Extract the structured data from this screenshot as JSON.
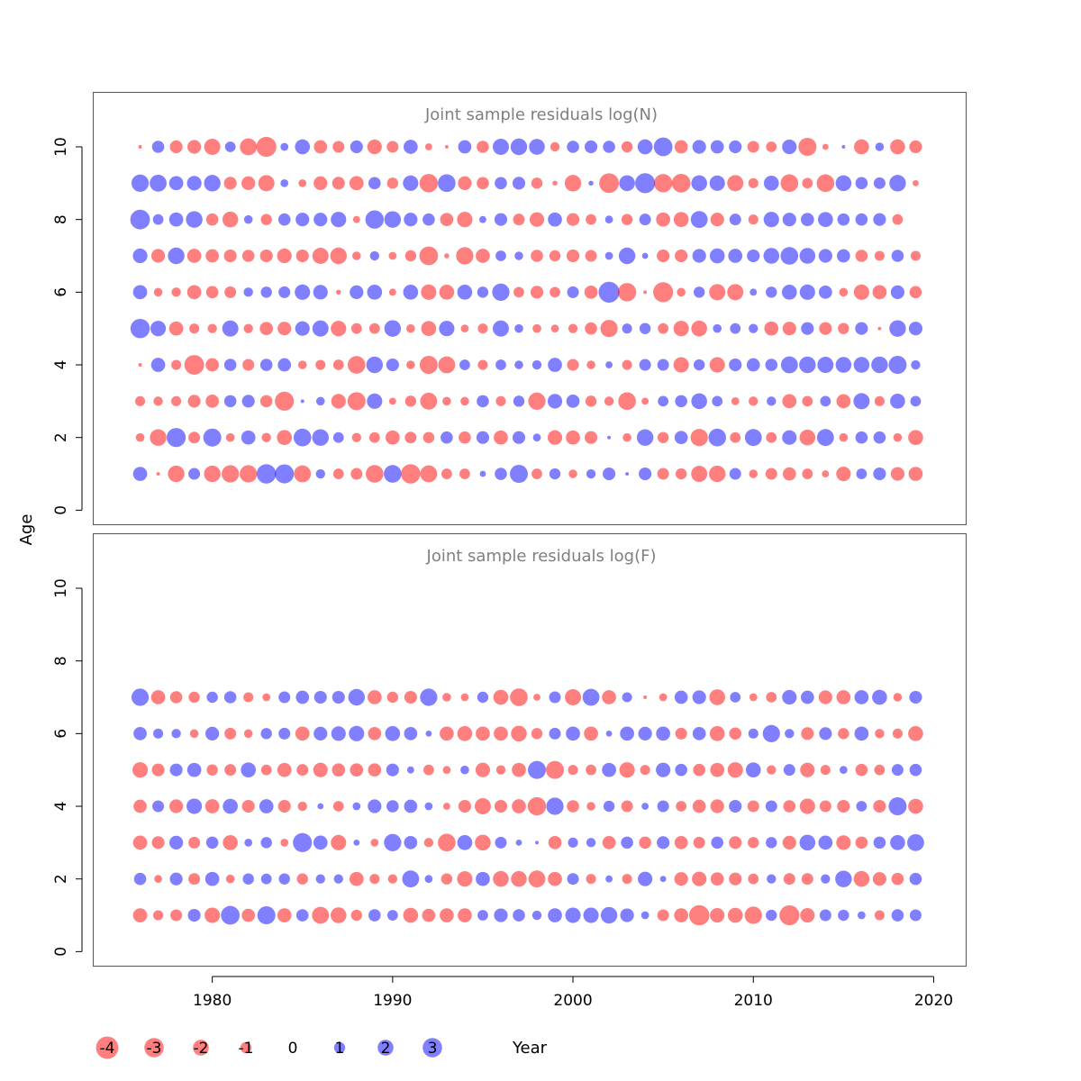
{
  "chart_data": {
    "type": "bubble",
    "x_label": "Year",
    "y_label": "Age",
    "x_ticks": [
      1980,
      1990,
      2000,
      2010,
      2020
    ],
    "x_range": [
      1973.4,
      2021.8
    ],
    "panels": [
      {
        "title": "Joint sample residuals log(N)",
        "y_ticks": [
          0,
          2,
          4,
          6,
          8,
          10
        ],
        "y_range": [
          -0.4,
          11.5
        ],
        "ages": [
          1,
          2,
          3,
          4,
          5,
          6,
          7,
          8,
          9,
          10
        ],
        "years": [
          1976,
          1977,
          1978,
          1979,
          1980,
          1981,
          1982,
          1983,
          1984,
          1985,
          1986,
          1987,
          1988,
          1989,
          1990,
          1991,
          1992,
          1993,
          1994,
          1995,
          1996,
          1997,
          1998,
          1999,
          2000,
          2001,
          2002,
          2003,
          2004,
          2005,
          2006,
          2007,
          2008,
          2009,
          2010,
          2011,
          2012,
          2013,
          2014,
          2015,
          2016,
          2017,
          2018,
          2019
        ],
        "residuals": [
          [
            1.6,
            -0.1,
            -2.2,
            1.1,
            -2.2,
            -2.4,
            -2.4,
            3.0,
            2.9,
            -2.3,
            0.7,
            -0.9,
            -1.1,
            -2.5,
            2.5,
            -3.0,
            -2.3,
            -0.9,
            -0.9,
            0.3,
            1.2,
            2.6,
            -0.9,
            1.0,
            -0.6,
            0.7,
            1.3,
            0.1,
            1.3,
            -1.1,
            -1.0,
            -2.1,
            -2.2,
            1.1,
            -0.6,
            -1.1,
            -1.4,
            -0.9,
            -0.4,
            -1.7,
            0.9,
            1.3,
            -1.5,
            -1.6
          ],
          [
            -0.6,
            -2.2,
            2.9,
            -1.1,
            2.6,
            -0.6,
            1.6,
            -0.7,
            -1.8,
            2.5,
            2.2,
            0.9,
            -0.7,
            -0.9,
            -1.6,
            -1.1,
            -1.0,
            1.2,
            -1.2,
            1.3,
            -1.6,
            1.3,
            0.5,
            -1.7,
            -1.6,
            -1.3,
            0.1,
            -0.6,
            2.2,
            -1.0,
            1.4,
            -2.4,
            2.5,
            -0.9,
            2.3,
            -0.9,
            1.7,
            -2.0,
            2.3,
            -0.6,
            1.2,
            1.2,
            -0.6,
            -1.8
          ],
          [
            -0.8,
            -0.7,
            -0.8,
            -1.3,
            -1.4,
            1.2,
            1.3,
            -1.2,
            -2.9,
            0.1,
            0.6,
            -1.7,
            -2.6,
            1.9,
            -0.4,
            -1.0,
            -2.3,
            -0.6,
            -0.6,
            1.2,
            -0.8,
            1.0,
            -2.4,
            1.7,
            1.4,
            -1.0,
            -0.7,
            -2.5,
            -0.4,
            0.9,
            1.2,
            2.0,
            0.9,
            -0.5,
            -0.7,
            0.7,
            -1.6,
            -0.9,
            0.9,
            -1.6,
            2.1,
            -0.8,
            1.8,
            0.9
          ],
          [
            -0.1,
            1.6,
            -0.8,
            -3.1,
            -1.4,
            1.2,
            -1.1,
            1.2,
            1.4,
            -0.6,
            -0.8,
            -0.9,
            -2.5,
            2.2,
            1.3,
            -0.6,
            -2.6,
            -2.3,
            0.9,
            -0.8,
            0.9,
            0.6,
            0.7,
            1.6,
            -1.1,
            -0.6,
            0.4,
            -0.8,
            1.1,
            1.1,
            -1.9,
            1.0,
            -1.9,
            1.3,
            1.4,
            1.2,
            2.3,
            2.2,
            2.1,
            2.0,
            2.0,
            2.2,
            2.6,
            0.7
          ],
          [
            3.0,
            1.9,
            -1.6,
            -0.8,
            -0.7,
            2.1,
            -0.7,
            -1.4,
            -1.5,
            1.7,
            2.1,
            -1.9,
            -0.9,
            -0.9,
            2.2,
            -0.6,
            -1.8,
            1.9,
            -0.5,
            -0.8,
            2.1,
            0.6,
            -0.6,
            -0.5,
            -0.7,
            -1.2,
            -2.4,
            0.8,
            1.0,
            -0.9,
            -1.9,
            -2.0,
            0.6,
            0.9,
            0.7,
            -1.6,
            -1.5,
            1.3,
            -1.3,
            -1.0,
            1.3,
            -0.1,
            2.2,
            1.5
          ],
          [
            1.6,
            -0.6,
            -0.7,
            -1.6,
            -1.2,
            -1.1,
            0.7,
            1.0,
            1.1,
            1.9,
            1.7,
            -0.2,
            1.5,
            1.8,
            -0.4,
            1.8,
            -1.9,
            -1.8,
            1.8,
            1.0,
            2.4,
            -0.9,
            -1.3,
            -0.9,
            1.1,
            -1.4,
            3.5,
            -2.7,
            -0.1,
            -3.2,
            -0.6,
            1.0,
            -2.1,
            -2.1,
            0.4,
            1.0,
            1.8,
            1.9,
            1.4,
            -0.6,
            -1.9,
            -1.6,
            1.5,
            -1.2
          ],
          [
            1.7,
            -1.5,
            2.2,
            -1.6,
            -1.4,
            -1.3,
            -1.2,
            -1.3,
            -1.7,
            -1.3,
            -2.1,
            -2.2,
            -0.6,
            0.7,
            -0.5,
            -1.0,
            -2.8,
            -0.2,
            -2.4,
            -1.6,
            0.9,
            0.6,
            -1.2,
            -1.0,
            -1.3,
            -1.1,
            0.5,
            2.2,
            0.3,
            -1.3,
            -1.3,
            1.5,
            1.8,
            1.6,
            1.3,
            2.0,
            2.5,
            2.0,
            1.5,
            1.4,
            -1.2,
            -0.8,
            1.2,
            -0.8
          ],
          [
            3.1,
            0.9,
            1.6,
            2.2,
            -1.2,
            -2.0,
            0.6,
            -1.0,
            1.2,
            1.5,
            1.5,
            1.9,
            -0.4,
            2.7,
            2.2,
            1.5,
            1.2,
            -1.4,
            -1.9,
            0.4,
            1.3,
            -1.1,
            -1.7,
            1.6,
            -1.3,
            -0.9,
            0.5,
            -1.0,
            1.1,
            -1.6,
            -1.8,
            2.3,
            -1.5,
            1.1,
            -0.8,
            1.9,
            1.5,
            1.4,
            1.8,
            1.2,
            1.2,
            1.3,
            -0.9,
            0.0
          ],
          [
            2.4,
            2.3,
            1.6,
            1.7,
            2.2,
            -1.3,
            -1.5,
            -2.1,
            0.5,
            -0.5,
            -1.5,
            -1.3,
            -1.6,
            1.2,
            -1.0,
            1.9,
            -2.7,
            2.5,
            -1.5,
            -1.2,
            1.2,
            1.3,
            -1.0,
            -0.2,
            -2.2,
            0.2,
            -3.1,
            2.0,
            3.2,
            -2.7,
            -2.8,
            2.0,
            1.9,
            -2.1,
            -0.8,
            1.8,
            -2.5,
            -0.9,
            -2.5,
            2.0,
            1.2,
            1.1,
            2.2,
            -0.3
          ],
          [
            -0.1,
            1.2,
            -1.3,
            -1.5,
            -2.1,
            0.9,
            -2.3,
            -3.2,
            0.5,
            1.8,
            -1.4,
            -1.1,
            1.3,
            -1.7,
            -1.1,
            1.6,
            -0.4,
            -0.1,
            1.4,
            -1.2,
            2.1,
            2.2,
            2.0,
            -0.7,
            1.2,
            1.3,
            1.2,
            -1.0,
            1.8,
            2.8,
            -1.4,
            1.5,
            1.4,
            1.3,
            -1.1,
            -0.9,
            1.7,
            -2.6,
            -0.3,
            0.1,
            -1.8,
            0.6,
            -1.8,
            -1.3
          ]
        ]
      },
      {
        "title": "Joint sample residuals log(F)",
        "y_ticks": [
          0,
          2,
          4,
          6,
          8,
          10
        ],
        "y_range": [
          -0.4,
          11.5
        ],
        "ages": [
          1,
          2,
          3,
          4,
          5,
          6,
          7
        ],
        "years": [
          1976,
          1977,
          1978,
          1979,
          1980,
          1981,
          1982,
          1983,
          1984,
          1985,
          1986,
          1987,
          1988,
          1989,
          1990,
          1991,
          1992,
          1993,
          1994,
          1995,
          1996,
          1997,
          1998,
          1999,
          2000,
          2001,
          2002,
          2003,
          2004,
          2005,
          2006,
          2007,
          2008,
          2009,
          2010,
          2011,
          2012,
          2013,
          2014,
          2015,
          2016,
          2017,
          2018,
          2019
        ],
        "residuals": [
          [
            -1.6,
            -0.8,
            -1.1,
            1.3,
            -1.9,
            2.8,
            -1.4,
            2.6,
            -1.6,
            1.2,
            -2.3,
            -2.0,
            -1.0,
            1.2,
            0.9,
            -1.8,
            -1.4,
            -1.6,
            -1.6,
            0.9,
            1.5,
            1.2,
            0.7,
            1.6,
            1.9,
            1.9,
            2.2,
            1.5,
            0.5,
            -1.1,
            -1.6,
            -3.3,
            -1.7,
            -1.8,
            -2.4,
            1.0,
            -3.2,
            -1.7,
            1.1,
            1.0,
            0.5,
            -0.8,
            1.2,
            1.1
          ],
          [
            1.2,
            -0.5,
            1.3,
            -1.1,
            1.6,
            -0.6,
            1.0,
            0.9,
            1.0,
            -1.0,
            0.7,
            0.7,
            -1.6,
            -0.8,
            -0.7,
            2.3,
            0.5,
            -1.0,
            -1.9,
            1.6,
            -2.0,
            -2.0,
            -2.3,
            -1.6,
            1.1,
            -0.8,
            0.4,
            -0.8,
            1.7,
            0.3,
            -1.5,
            -1.7,
            -1.4,
            -1.3,
            -0.9,
            0.7,
            -1.1,
            -1.1,
            0.7,
            2.2,
            -2.0,
            -1.5,
            -1.2,
            1.2
          ],
          [
            -1.6,
            -1.3,
            1.5,
            -1.1,
            1.2,
            -1.8,
            0.5,
            1.0,
            -0.5,
            2.9,
            1.6,
            -1.9,
            0.3,
            -0.5,
            2.4,
            1.4,
            -0.7,
            -2.5,
            1.8,
            -2.0,
            1.1,
            0.3,
            0.1,
            -1.4,
            0.8,
            0.7,
            -1.4,
            1.2,
            -1.2,
            1.3,
            -1.4,
            -1.1,
            1.2,
            -1.3,
            -1.0,
            1.0,
            -1.5,
            2.0,
            1.6,
            -1.7,
            -1.2,
            1.2,
            1.8,
            2.3
          ],
          [
            -1.4,
            1.1,
            -1.5,
            1.9,
            -1.6,
            1.8,
            -1.3,
            1.6,
            -1.3,
            -0.7,
            0.3,
            -0.9,
            0.5,
            1.5,
            1.2,
            1.4,
            0.5,
            -0.4,
            -1.3,
            -2.1,
            -1.3,
            -1.6,
            -2.7,
            2.4,
            -1.2,
            -0.6,
            1.0,
            -1.1,
            0.4,
            1.1,
            -0.9,
            -1.4,
            -1.5,
            1.3,
            -1.1,
            1.1,
            -1.2,
            -1.9,
            -1.1,
            -1.3,
            0.9,
            -1.3,
            2.6,
            -1.8
          ],
          [
            -1.9,
            -1.3,
            1.3,
            1.6,
            -1.0,
            -1.1,
            1.8,
            -0.9,
            -1.6,
            -1.1,
            -1.7,
            -1.4,
            -1.4,
            -1.4,
            1.3,
            0.4,
            -0.9,
            -0.5,
            0.6,
            -1.7,
            -0.7,
            -1.6,
            2.6,
            -2.6,
            -0.8,
            -0.9,
            1.6,
            -1.9,
            -0.8,
            1.7,
            1.2,
            -1.2,
            -1.6,
            -1.9,
            1.8,
            -0.7,
            1.1,
            -1.7,
            -0.8,
            0.5,
            -1.2,
            -0.9,
            1.1,
            1.2
          ],
          [
            1.4,
            0.8,
            0.7,
            -0.6,
            1.5,
            -1.1,
            -0.6,
            1.0,
            1.1,
            -1.6,
            1.5,
            1.7,
            1.9,
            -1.4,
            1.8,
            1.4,
            0.3,
            -1.6,
            -1.8,
            -1.6,
            -1.6,
            -2.0,
            -1.0,
            1.1,
            1.6,
            -1.6,
            0.3,
            1.6,
            1.5,
            1.6,
            -1.1,
            1.4,
            -1.8,
            -1.2,
            0.8,
            2.4,
            0.7,
            -1.3,
            1.3,
            -1.0,
            1.6,
            -0.7,
            -0.8,
            -1.8
          ],
          [
            2.4,
            -1.6,
            -1.2,
            -1.0,
            1.0,
            1.2,
            -0.8,
            -0.5,
            1.1,
            1.4,
            1.3,
            1.3,
            2.2,
            -1.6,
            -1.0,
            -1.3,
            2.4,
            -0.6,
            -0.5,
            1.0,
            -1.8,
            -2.5,
            -0.4,
            1.1,
            -2.1,
            2.3,
            -1.6,
            0.8,
            -0.1,
            -0.5,
            1.4,
            1.5,
            -2.0,
            0.9,
            -0.5,
            -0.9,
            1.7,
            1.4,
            -1.5,
            -1.6,
            1.6,
            1.8,
            -0.6,
            1.3
          ]
        ]
      }
    ],
    "legend": {
      "labels": [
        "-4",
        "-3",
        "-2",
        "-1",
        "0",
        "1",
        "2",
        "3"
      ],
      "values": [
        -4,
        -3,
        -2,
        -1,
        0,
        1,
        2,
        3
      ]
    },
    "colors": {
      "negative": "#ff0000",
      "positive": "#0000ff",
      "fill_opacity": 0.5,
      "title": "#7f7f7f",
      "frame": "#555555"
    }
  }
}
